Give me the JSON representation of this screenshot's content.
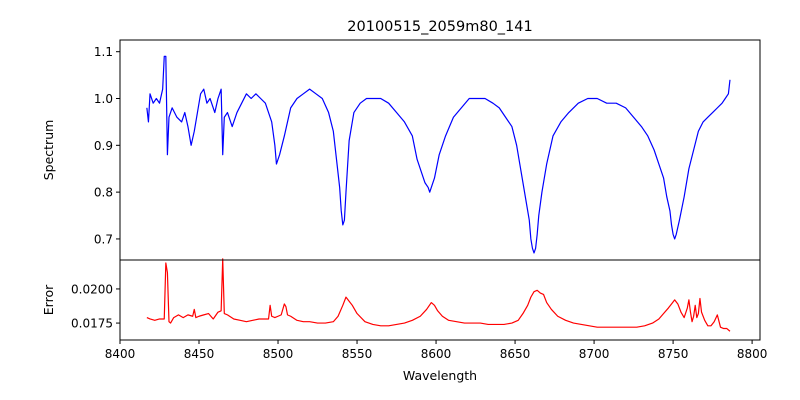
{
  "chart_data": [
    {
      "type": "line",
      "panel": "spectrum",
      "title": "20100515_2059m80_141",
      "xlabel": "",
      "ylabel": "Spectrum",
      "xlim": [
        8400,
        8805
      ],
      "ylim": [
        0.655,
        1.125
      ],
      "yticks": [
        0.7,
        0.8,
        0.9,
        1.0,
        1.1
      ],
      "ytick_labels": [
        "0.7",
        "0.8",
        "0.9",
        "1.0",
        "1.1"
      ],
      "grid": false,
      "series": [
        {
          "name": "Spectrum",
          "color": "#0000ff",
          "x": [
            8417,
            8418,
            8419,
            8421,
            8423,
            8425,
            8427,
            8428,
            8429,
            8430,
            8431,
            8433,
            8436,
            8439,
            8441,
            8443,
            8445,
            8447,
            8449,
            8451,
            8453,
            8455,
            8457,
            8460,
            8462,
            8464,
            8465,
            8466,
            8468,
            8471,
            8474,
            8477,
            8480,
            8483,
            8486,
            8489,
            8492,
            8494,
            8496,
            8498,
            8499,
            8501,
            8504,
            8508,
            8512,
            8516,
            8520,
            8524,
            8528,
            8532,
            8535,
            8537,
            8539,
            8540,
            8541,
            8542,
            8543,
            8545,
            8548,
            8552,
            8556,
            8560,
            8565,
            8570,
            8575,
            8580,
            8585,
            8588,
            8591,
            8593,
            8595,
            8596,
            8597,
            8599,
            8602,
            8606,
            8611,
            8616,
            8621,
            8626,
            8631,
            8636,
            8640,
            8644,
            8648,
            8651,
            8653,
            8655,
            8657,
            8659,
            8660,
            8661,
            8662,
            8663,
            8664,
            8665,
            8667,
            8670,
            8674,
            8679,
            8684,
            8690,
            8696,
            8702,
            8708,
            8714,
            8720,
            8725,
            8730,
            8734,
            8738,
            8741,
            8744,
            8746,
            8748,
            8749,
            8750,
            8751,
            8752,
            8754,
            8757,
            8760,
            8763,
            8766,
            8769,
            8772,
            8775,
            8778,
            8781,
            8783,
            8785,
            8786
          ],
          "y": [
            0.98,
            0.95,
            1.01,
            0.99,
            1.0,
            0.99,
            1.02,
            1.09,
            1.09,
            0.88,
            0.96,
            0.98,
            0.96,
            0.95,
            0.97,
            0.94,
            0.9,
            0.93,
            0.97,
            1.01,
            1.02,
            0.99,
            1.0,
            0.97,
            1.0,
            1.02,
            0.88,
            0.96,
            0.97,
            0.94,
            0.97,
            0.99,
            1.01,
            1.0,
            1.01,
            1.0,
            0.99,
            0.97,
            0.95,
            0.9,
            0.86,
            0.88,
            0.92,
            0.98,
            1.0,
            1.01,
            1.02,
            1.01,
            1.0,
            0.97,
            0.93,
            0.87,
            0.81,
            0.76,
            0.73,
            0.74,
            0.8,
            0.91,
            0.97,
            0.99,
            1.0,
            1.0,
            1.0,
            0.99,
            0.97,
            0.95,
            0.92,
            0.87,
            0.84,
            0.82,
            0.81,
            0.8,
            0.81,
            0.83,
            0.88,
            0.92,
            0.96,
            0.98,
            1.0,
            1.0,
            1.0,
            0.99,
            0.98,
            0.96,
            0.94,
            0.9,
            0.86,
            0.82,
            0.78,
            0.74,
            0.7,
            0.68,
            0.67,
            0.68,
            0.71,
            0.75,
            0.8,
            0.86,
            0.92,
            0.95,
            0.97,
            0.99,
            1.0,
            1.0,
            0.99,
            0.99,
            0.98,
            0.96,
            0.94,
            0.92,
            0.89,
            0.86,
            0.83,
            0.79,
            0.76,
            0.73,
            0.71,
            0.7,
            0.71,
            0.74,
            0.79,
            0.85,
            0.89,
            0.93,
            0.95,
            0.96,
            0.97,
            0.98,
            0.99,
            1.0,
            1.01,
            1.04
          ]
        }
      ]
    },
    {
      "type": "line",
      "panel": "error",
      "title": "",
      "xlabel": "Wavelength",
      "ylabel": "Error",
      "xlim": [
        8400,
        8805
      ],
      "ylim": [
        0.01626,
        0.02212
      ],
      "xticks": [
        8400,
        8450,
        8500,
        8550,
        8600,
        8650,
        8700,
        8750,
        8800
      ],
      "xtick_labels": [
        "8400",
        "8450",
        "8500",
        "8550",
        "8600",
        "8650",
        "8700",
        "8750",
        "8800"
      ],
      "yticks": [
        0.0175,
        0.02
      ],
      "ytick_labels": [
        "0.0175",
        "0.0200"
      ],
      "grid": false,
      "series": [
        {
          "name": "Error",
          "color": "#ff0000",
          "x": [
            8417,
            8419,
            8422,
            8425,
            8428,
            8429,
            8430,
            8431,
            8432,
            8434,
            8437,
            8440,
            8443,
            8446,
            8447,
            8448,
            8450,
            8453,
            8456,
            8459,
            8462,
            8464,
            8465,
            8466,
            8468,
            8472,
            8476,
            8480,
            8484,
            8488,
            8492,
            8494,
            8495,
            8496,
            8498,
            8500,
            8502,
            8504,
            8505,
            8506,
            8508,
            8512,
            8516,
            8520,
            8525,
            8530,
            8535,
            8538,
            8541,
            8543,
            8545,
            8547,
            8550,
            8555,
            8560,
            8565,
            8570,
            8575,
            8580,
            8585,
            8590,
            8594,
            8597,
            8599,
            8601,
            8604,
            8608,
            8613,
            8618,
            8623,
            8628,
            8633,
            8638,
            8643,
            8648,
            8652,
            8655,
            8658,
            8660,
            8662,
            8664,
            8666,
            8668,
            8670,
            8673,
            8677,
            8682,
            8687,
            8692,
            8697,
            8702,
            8707,
            8712,
            8717,
            8722,
            8727,
            8732,
            8737,
            8741,
            8744,
            8747,
            8749,
            8751,
            8753,
            8755,
            8757,
            8759,
            8760,
            8761,
            8762,
            8763,
            8764,
            8765,
            8766,
            8767,
            8768,
            8770,
            8772,
            8774,
            8776,
            8778,
            8780,
            8782,
            8784,
            8786
          ],
          "y": [
            0.0179,
            0.0178,
            0.0177,
            0.0178,
            0.0178,
            0.0219,
            0.0212,
            0.0176,
            0.0175,
            0.0179,
            0.0181,
            0.0179,
            0.0181,
            0.018,
            0.0185,
            0.0179,
            0.018,
            0.0181,
            0.0182,
            0.0178,
            0.0183,
            0.0184,
            0.0222,
            0.0182,
            0.0181,
            0.0178,
            0.0177,
            0.0176,
            0.0177,
            0.0178,
            0.0178,
            0.0178,
            0.0188,
            0.018,
            0.0179,
            0.018,
            0.0181,
            0.0189,
            0.0187,
            0.0181,
            0.018,
            0.0177,
            0.0176,
            0.0176,
            0.0175,
            0.0175,
            0.0176,
            0.018,
            0.0188,
            0.0194,
            0.0191,
            0.0188,
            0.0182,
            0.0176,
            0.0174,
            0.0173,
            0.0173,
            0.0174,
            0.0175,
            0.0177,
            0.018,
            0.0185,
            0.019,
            0.0188,
            0.0184,
            0.018,
            0.0177,
            0.0176,
            0.0175,
            0.0175,
            0.0175,
            0.0174,
            0.0174,
            0.0174,
            0.0175,
            0.0177,
            0.0182,
            0.0188,
            0.0194,
            0.0198,
            0.0199,
            0.0197,
            0.0196,
            0.019,
            0.0185,
            0.018,
            0.0177,
            0.0175,
            0.0174,
            0.0173,
            0.0172,
            0.0172,
            0.0172,
            0.0172,
            0.0172,
            0.0172,
            0.0173,
            0.0175,
            0.0178,
            0.0182,
            0.0186,
            0.0189,
            0.0192,
            0.0189,
            0.0183,
            0.0179,
            0.0186,
            0.0192,
            0.0183,
            0.0176,
            0.018,
            0.0188,
            0.0179,
            0.0182,
            0.0193,
            0.0183,
            0.0177,
            0.0173,
            0.0173,
            0.0176,
            0.0181,
            0.0172,
            0.0171,
            0.0171,
            0.0169
          ]
        }
      ]
    }
  ]
}
